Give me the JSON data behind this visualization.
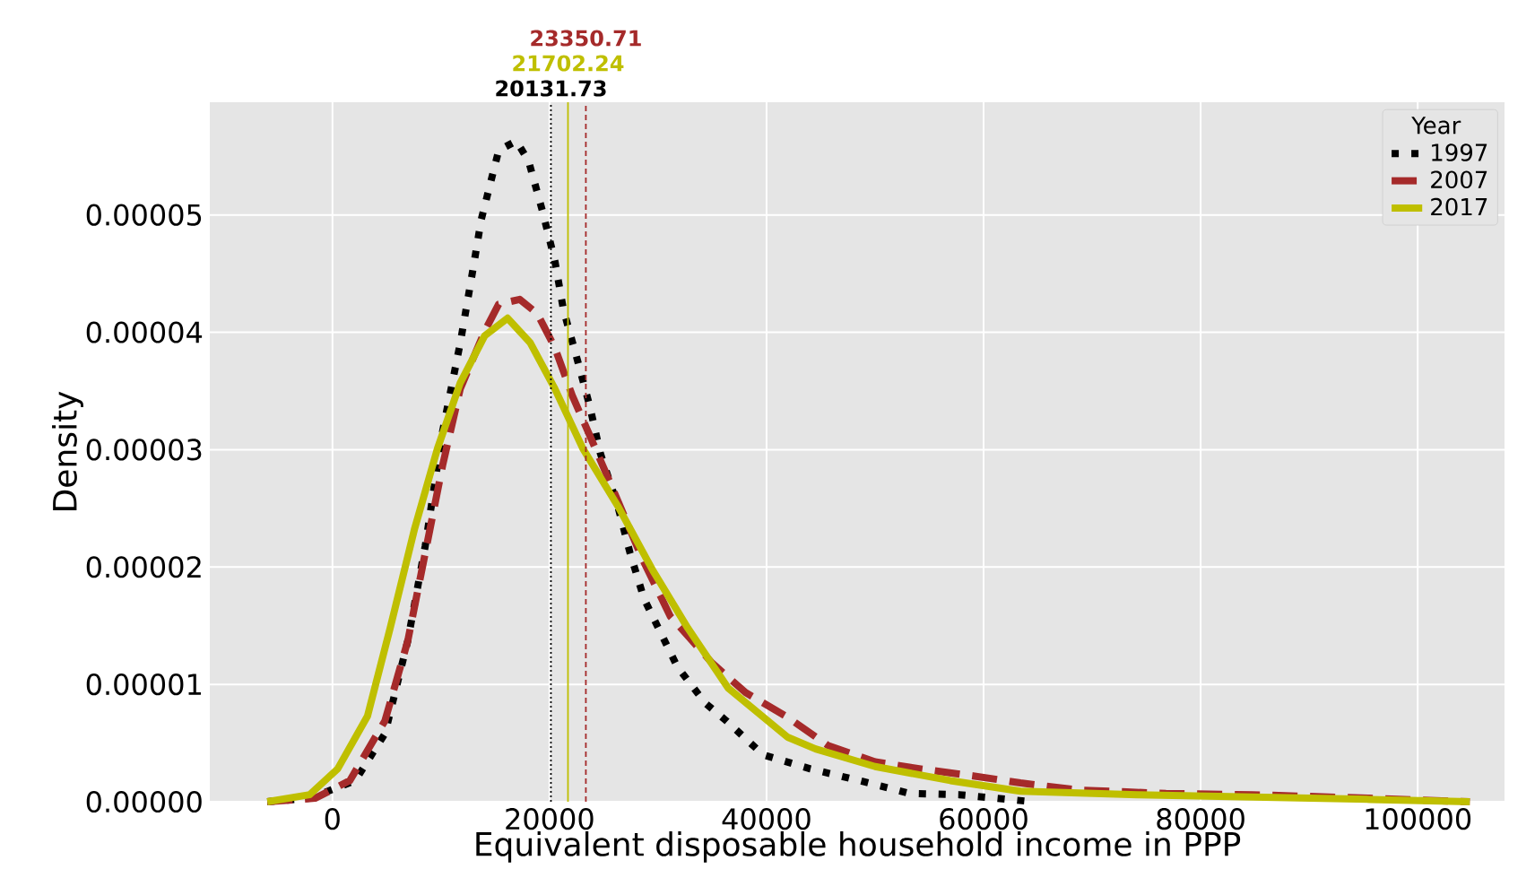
{
  "chart_data": {
    "type": "line",
    "xlabel": "Equivalent disposable household income in PPP",
    "ylabel": "Density",
    "legend_title": "Year",
    "legend": "top right",
    "grid": true,
    "xlim": [
      -11300,
      108000
    ],
    "ylim": [
      0,
      5.96e-05
    ],
    "xticks": [
      0,
      20000,
      40000,
      60000,
      80000,
      100000
    ],
    "yticks": [
      {
        "value": 0,
        "label": "0.00000"
      },
      {
        "value": 1e-05,
        "label": "0.00001"
      },
      {
        "value": 2e-05,
        "label": "0.00002"
      },
      {
        "value": 3e-05,
        "label": "0.00003"
      },
      {
        "value": 4e-05,
        "label": "0.00004"
      },
      {
        "value": 5e-05,
        "label": "0.00005"
      }
    ],
    "series": [
      {
        "name": "1997",
        "color": "#000000",
        "line_style": "dotted",
        "x": [
          -6000,
          -2100,
          2100,
          4840,
          6940,
          8550,
          10160,
          11780,
          12900,
          13710,
          15320,
          16940,
          18070,
          19360,
          20490,
          21290,
          22580,
          23710,
          24680,
          26290,
          27420,
          28710,
          31780,
          34360,
          36290,
          39680,
          44040,
          48550,
          53230,
          57750,
          64500
        ],
        "values": [
          0,
          3e-07,
          1.8e-06,
          5.8e-06,
          1.37e-05,
          2.18e-05,
          3.16e-05,
          3.91e-05,
          4.51e-05,
          4.96e-05,
          5.55e-05,
          5.63e-05,
          5.46e-05,
          5.03e-05,
          4.61e-05,
          4.19e-05,
          3.76e-05,
          3.37e-05,
          2.97e-05,
          2.52e-05,
          2.12e-05,
          1.73e-05,
          1.15e-05,
          8.4e-06,
          6.9e-06,
          4e-06,
          2.8e-06,
          1.8e-06,
          7e-07,
          6e-07,
          0
        ]
      },
      {
        "name": "2007",
        "color": "#a52a2a",
        "line_style": "dashed",
        "x": [
          -6000,
          -1600,
          1600,
          4840,
          6940,
          8550,
          10160,
          11780,
          14030,
          15320,
          17260,
          18870,
          20490,
          22100,
          23710,
          25810,
          28550,
          31130,
          35000,
          38070,
          41940,
          45650,
          50000,
          54200,
          59040,
          63400,
          68700,
          76800,
          84800,
          95600,
          104800
        ],
        "values": [
          0,
          3e-07,
          1.8e-06,
          6.9e-06,
          1.37e-05,
          2.12e-05,
          2.87e-05,
          3.52e-05,
          4.01e-05,
          4.24e-05,
          4.28e-05,
          4.16e-05,
          3.87e-05,
          3.46e-05,
          3.12e-05,
          2.67e-05,
          2.07e-05,
          1.58e-05,
          1.18e-05,
          9.3e-06,
          7.2e-06,
          4.8e-06,
          3.4e-06,
          2.8e-06,
          2.2e-06,
          1.6e-06,
          1e-06,
          7e-07,
          6e-07,
          3e-07,
          0
        ]
      },
      {
        "name": "2017",
        "color": "#bfbf00",
        "line_style": "solid",
        "x": [
          -6000,
          -2100,
          480,
          3230,
          5320,
          7580,
          9680,
          11780,
          14030,
          16130,
          18230,
          20490,
          23070,
          26290,
          29520,
          32740,
          36450,
          41940,
          44520,
          50000,
          56940,
          63400,
          74200,
          84800,
          95600,
          104800
        ],
        "values": [
          0,
          6e-07,
          2.8e-06,
          7.3e-06,
          1.48e-05,
          2.33e-05,
          3.01e-05,
          3.57e-05,
          3.97e-05,
          4.12e-05,
          3.91e-05,
          3.52e-05,
          3.01e-05,
          2.52e-05,
          1.97e-05,
          1.48e-05,
          9.7e-06,
          5.5e-06,
          4.5e-06,
          3e-06,
          1.8e-06,
          9e-07,
          6e-07,
          4e-07,
          2e-07,
          0
        ]
      }
    ],
    "ref_lines": [
      {
        "axis": "x",
        "value": 20131.73,
        "label": "20131.73",
        "color": "#000000",
        "line_style": "dotted"
      },
      {
        "axis": "x",
        "value": 21702.24,
        "label": "21702.24",
        "color": "#bfbf00",
        "line_style": "solid"
      },
      {
        "axis": "x",
        "value": 23350.71,
        "label": "23350.71",
        "color": "#a52a2a",
        "line_style": "dashed"
      }
    ]
  }
}
